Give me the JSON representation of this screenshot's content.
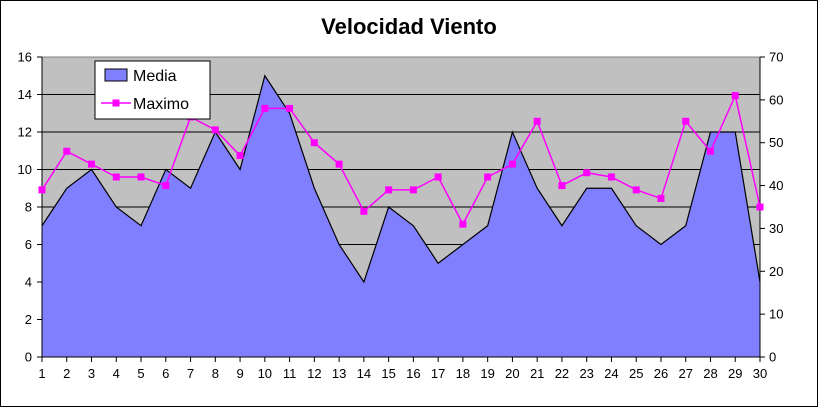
{
  "chart_data": {
    "type": "area",
    "title": "Velocidad Viento",
    "categories": [
      "1",
      "2",
      "3",
      "4",
      "5",
      "6",
      "7",
      "8",
      "9",
      "10",
      "11",
      "12",
      "13",
      "14",
      "15",
      "16",
      "17",
      "18",
      "19",
      "20",
      "21",
      "22",
      "23",
      "24",
      "25",
      "26",
      "27",
      "28",
      "29",
      "30"
    ],
    "y_left": {
      "min": 0,
      "max": 16,
      "ticks": [
        "0",
        "2",
        "4",
        "6",
        "8",
        "10",
        "12",
        "14",
        "16"
      ]
    },
    "y_right": {
      "min": 0,
      "max": 70,
      "ticks": [
        "0",
        "10",
        "20",
        "30",
        "40",
        "50",
        "60",
        "70"
      ]
    },
    "series": [
      {
        "name": "Media",
        "type": "area",
        "axis": "left",
        "color": "#8080ff",
        "values": [
          7,
          9,
          10,
          8,
          7,
          10,
          9,
          12,
          10,
          15,
          13,
          9,
          6,
          4,
          8,
          7,
          5,
          6,
          7,
          12,
          9,
          7,
          9,
          9,
          7,
          6,
          7,
          12,
          12,
          4
        ]
      },
      {
        "name": "Maximo",
        "type": "line",
        "axis": "right",
        "color": "#ff00ff",
        "values": [
          39,
          48,
          45,
          42,
          42,
          40,
          56,
          53,
          47,
          58,
          58,
          50,
          45,
          34,
          39,
          39,
          42,
          31,
          42,
          45,
          55,
          40,
          43,
          42,
          39,
          37,
          55,
          48,
          61,
          35
        ]
      }
    ],
    "plot_background": "#c0c0c0",
    "grid": true,
    "legend_position": "top-left"
  }
}
